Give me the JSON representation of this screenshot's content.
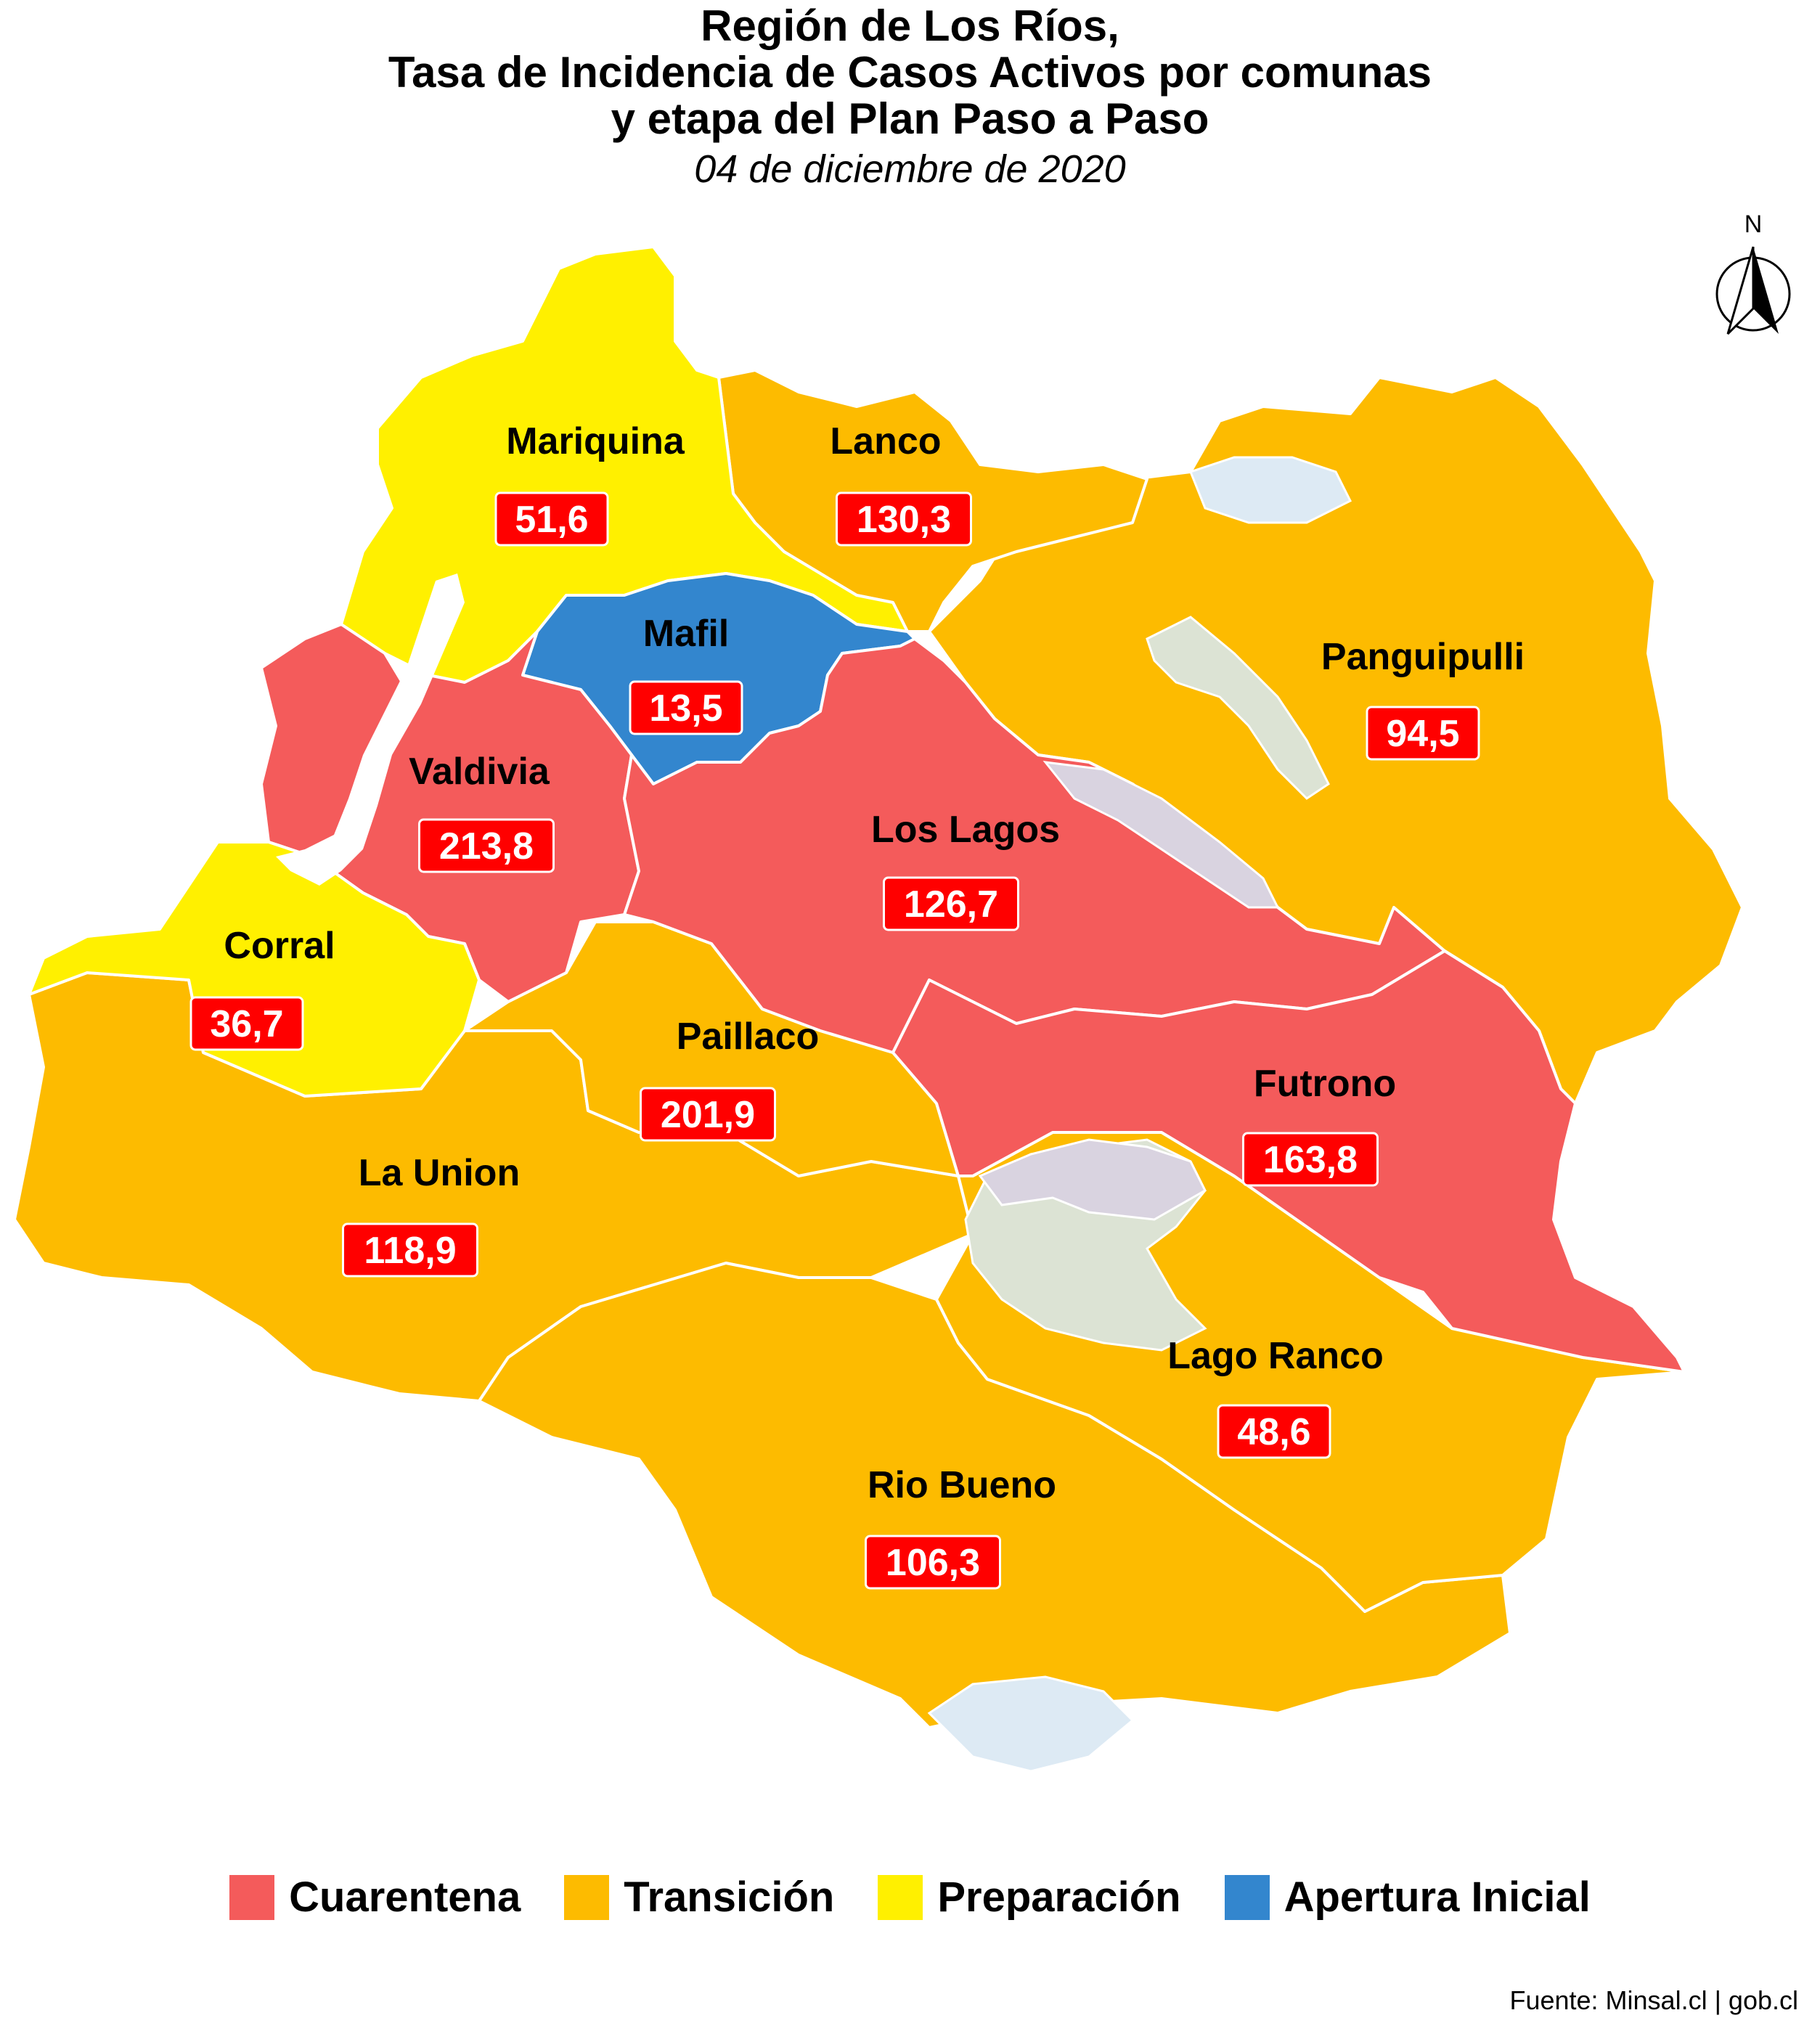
{
  "title": {
    "line1": "Región de Los Ríos,",
    "line2": "Tasa de Incidencia de Casos Activos por comunas",
    "line3": "y etapa del Plan Paso a Paso",
    "date": "04 de diciembre de 2020"
  },
  "north_arrow": {
    "label": "N",
    "icon": "north-arrow-icon"
  },
  "colors": {
    "cuarentena": "#F45B5B",
    "transicion": "#FDBB00",
    "preparacion": "#FFF000",
    "apertura_inicial": "#3386CE",
    "lake": "#DDEAF4",
    "lake_grey": "#DCE3D4",
    "label_box": "#FF0000",
    "boundary": "#FFFFFF"
  },
  "communes": [
    {
      "name": "Mariquina",
      "rate": "51,6",
      "stage": "Preparación"
    },
    {
      "name": "Lanco",
      "rate": "130,3",
      "stage": "Transición"
    },
    {
      "name": "Mafil",
      "rate": "13,5",
      "stage": "Apertura Inicial"
    },
    {
      "name": "Panguipulli",
      "rate": "94,5",
      "stage": "Transición"
    },
    {
      "name": "Valdivia",
      "rate": "213,8",
      "stage": "Cuarentena"
    },
    {
      "name": "Los Lagos",
      "rate": "126,7",
      "stage": "Cuarentena"
    },
    {
      "name": "Corral",
      "rate": "36,7",
      "stage": "Preparación"
    },
    {
      "name": "Paillaco",
      "rate": "201,9",
      "stage": "Transición"
    },
    {
      "name": "Futrono",
      "rate": "163,8",
      "stage": "Cuarentena"
    },
    {
      "name": "La Union",
      "rate": "118,9",
      "stage": "Transición"
    },
    {
      "name": "Lago Ranco",
      "rate": "48,6",
      "stage": "Transición"
    },
    {
      "name": "Rio Bueno",
      "rate": "106,3",
      "stage": "Transición"
    }
  ],
  "legend": [
    {
      "label": "Cuarentena",
      "color": "#F45B5B"
    },
    {
      "label": "Transición",
      "color": "#FDBB00"
    },
    {
      "label": "Preparación",
      "color": "#FFF000"
    },
    {
      "label": "Apertura Inicial",
      "color": "#3386CE"
    }
  ],
  "source": "Fuente: Minsal.cl | gob.cl"
}
